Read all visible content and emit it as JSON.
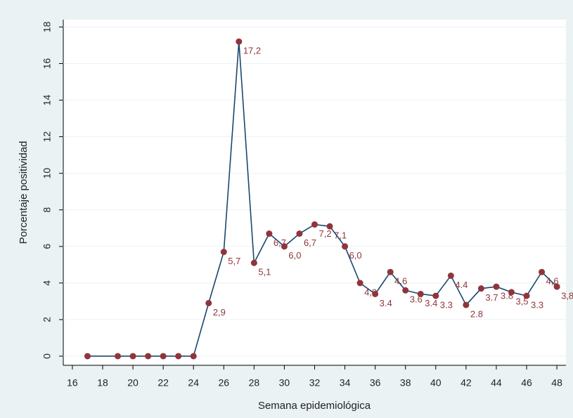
{
  "chart_data": {
    "type": "line",
    "xlabel": "Semana epidemiológica",
    "ylabel": "Porcentaje positividad",
    "x": [
      17,
      19,
      20,
      21,
      22,
      23,
      24,
      25,
      26,
      27,
      28,
      29,
      30,
      31,
      32,
      33,
      34,
      35,
      36,
      37,
      38,
      39,
      40,
      41,
      42,
      43,
      44,
      45,
      46,
      47,
      48
    ],
    "series": [
      {
        "line_color": "#1a476f",
        "color": "#90353b",
        "values": [
          0,
          0,
          0,
          0,
          0,
          0,
          0,
          2.9,
          5.7,
          17.2,
          5.1,
          6.7,
          6.0,
          6.7,
          7.2,
          7.1,
          6.0,
          4.0,
          3.4,
          4.6,
          3.6,
          3.4,
          3.3,
          4.4,
          2.8,
          3.7,
          3.8,
          3.5,
          3.3,
          4.6,
          3.8
        ],
        "value_labels": [
          null,
          null,
          null,
          null,
          null,
          null,
          null,
          "2,9",
          "5,7",
          "17,2",
          "5,1",
          "6,7",
          "6,0",
          "6,7",
          "7,2",
          "7,1",
          "6,0",
          "4,0",
          "3.4",
          "4.6",
          "3.6",
          "3.4",
          "3.3",
          "4.4",
          "2.8",
          "3.7",
          "3.8",
          "3,5",
          "3.3",
          "4,6",
          "3,8"
        ]
      }
    ],
    "xlim": [
      15.4,
      48.6
    ],
    "ylim": [
      -0.5,
      18.4
    ],
    "xticks": [
      16,
      18,
      20,
      22,
      24,
      26,
      28,
      30,
      32,
      34,
      36,
      38,
      40,
      42,
      44,
      46,
      48
    ],
    "yticks": [
      0,
      2,
      4,
      6,
      8,
      10,
      12,
      14,
      16,
      18
    ],
    "grid": true
  }
}
